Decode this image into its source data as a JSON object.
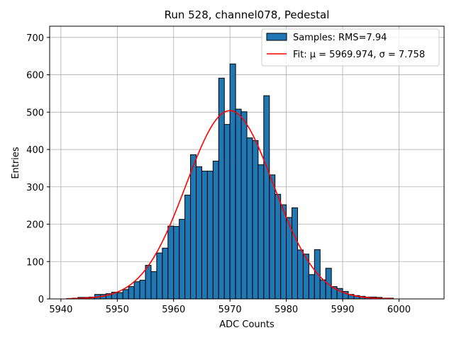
{
  "chart_data": {
    "type": "bar",
    "title": "Run 528, channel078, Pedestal",
    "xlabel": "ADC Counts",
    "ylabel": "Entries",
    "xlim": [
      5938,
      6008
    ],
    "ylim": [
      0,
      730
    ],
    "xticks": [
      5940,
      5950,
      5960,
      5970,
      5980,
      5990,
      6000
    ],
    "yticks": [
      0,
      100,
      200,
      300,
      400,
      500,
      600,
      700
    ],
    "grid": true,
    "legend_position": "top-right",
    "bin_width": 1,
    "histogram": {
      "name": "Samples: RMS=7.94",
      "color": "#1f77b4",
      "bin_starts": [
        5941,
        5942,
        5943,
        5944,
        5945,
        5946,
        5947,
        5948,
        5949,
        5950,
        5951,
        5952,
        5953,
        5954,
        5955,
        5956,
        5957,
        5958,
        5959,
        5960,
        5961,
        5962,
        5963,
        5964,
        5965,
        5966,
        5967,
        5968,
        5969,
        5970,
        5971,
        5972,
        5973,
        5974,
        5975,
        5976,
        5977,
        5978,
        5979,
        5980,
        5981,
        5982,
        5983,
        5984,
        5985,
        5986,
        5987,
        5988,
        5989,
        5990,
        5991,
        5992,
        5993,
        5994,
        5995,
        5996,
        5997,
        5998
      ],
      "values": [
        1,
        2,
        4,
        4,
        5,
        12,
        12,
        14,
        18,
        17,
        25,
        33,
        46,
        50,
        90,
        73,
        123,
        136,
        195,
        194,
        213,
        278,
        386,
        354,
        342,
        342,
        369,
        591,
        467,
        629,
        508,
        501,
        431,
        424,
        359,
        544,
        332,
        280,
        252,
        218,
        244,
        131,
        120,
        65,
        132,
        51,
        82,
        33,
        28,
        20,
        12,
        9,
        7,
        5,
        5,
        4,
        2,
        2
      ]
    },
    "fit": {
      "name": "Fit: μ = 5969.974, σ = 7.758",
      "color": "#ff0000",
      "mu": 5969.974,
      "sigma": 7.758,
      "amplitude": 504,
      "x_range": [
        5941,
        5999
      ]
    }
  }
}
